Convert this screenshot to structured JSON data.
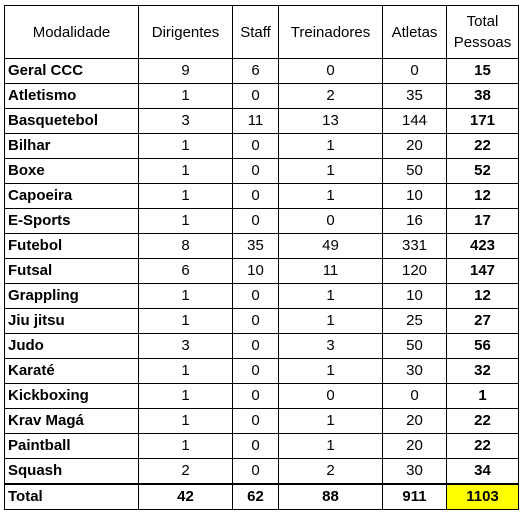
{
  "table": {
    "headers": {
      "modalidade": "Modalidade",
      "dirigentes": "Dirigentes",
      "staff": "Staff",
      "treinadores": "Treinadores",
      "atletas": "Atletas",
      "total_line1": "Total",
      "total_line2": "Pessoas"
    },
    "rows": [
      {
        "name": "Geral CCC",
        "dirigentes": "9",
        "staff": "6",
        "treinadores": "0",
        "atletas": "0",
        "total": "15"
      },
      {
        "name": "Atletismo",
        "dirigentes": "1",
        "staff": "0",
        "treinadores": "2",
        "atletas": "35",
        "total": "38"
      },
      {
        "name": "Basquetebol",
        "dirigentes": "3",
        "staff": "11",
        "treinadores": "13",
        "atletas": "144",
        "total": "171"
      },
      {
        "name": "Bilhar",
        "dirigentes": "1",
        "staff": "0",
        "treinadores": "1",
        "atletas": "20",
        "total": "22"
      },
      {
        "name": "Boxe",
        "dirigentes": "1",
        "staff": "0",
        "treinadores": "1",
        "atletas": "50",
        "total": "52"
      },
      {
        "name": "Capoeira",
        "dirigentes": "1",
        "staff": "0",
        "treinadores": "1",
        "atletas": "10",
        "total": "12"
      },
      {
        "name": "E-Sports",
        "dirigentes": "1",
        "staff": "0",
        "treinadores": "0",
        "atletas": "16",
        "total": "17"
      },
      {
        "name": "Futebol",
        "dirigentes": "8",
        "staff": "35",
        "treinadores": "49",
        "atletas": "331",
        "total": "423"
      },
      {
        "name": "Futsal",
        "dirigentes": "6",
        "staff": "10",
        "treinadores": "11",
        "atletas": "120",
        "total": "147"
      },
      {
        "name": "Grappling",
        "dirigentes": "1",
        "staff": "0",
        "treinadores": "1",
        "atletas": "10",
        "total": "12"
      },
      {
        "name": "Jiu jitsu",
        "dirigentes": "1",
        "staff": "0",
        "treinadores": "1",
        "atletas": "25",
        "total": "27"
      },
      {
        "name": "Judo",
        "dirigentes": "3",
        "staff": "0",
        "treinadores": "3",
        "atletas": "50",
        "total": "56"
      },
      {
        "name": "Karaté",
        "dirigentes": "1",
        "staff": "0",
        "treinadores": "1",
        "atletas": "30",
        "total": "32"
      },
      {
        "name": "Kickboxing",
        "dirigentes": "1",
        "staff": "0",
        "treinadores": "0",
        "atletas": "0",
        "total": "1"
      },
      {
        "name": "Krav Magá",
        "dirigentes": "1",
        "staff": "0",
        "treinadores": "1",
        "atletas": "20",
        "total": "22"
      },
      {
        "name": "Paintball",
        "dirigentes": "1",
        "staff": "0",
        "treinadores": "1",
        "atletas": "20",
        "total": "22"
      },
      {
        "name": "Squash",
        "dirigentes": "2",
        "staff": "0",
        "treinadores": "2",
        "atletas": "30",
        "total": "34"
      }
    ],
    "footer": {
      "label": "Total",
      "dirigentes": "42",
      "staff": "62",
      "treinadores": "88",
      "atletas": "911",
      "total": "1103"
    },
    "colors": {
      "grand_total_highlight": "#ffff00",
      "border": "#000000"
    }
  }
}
